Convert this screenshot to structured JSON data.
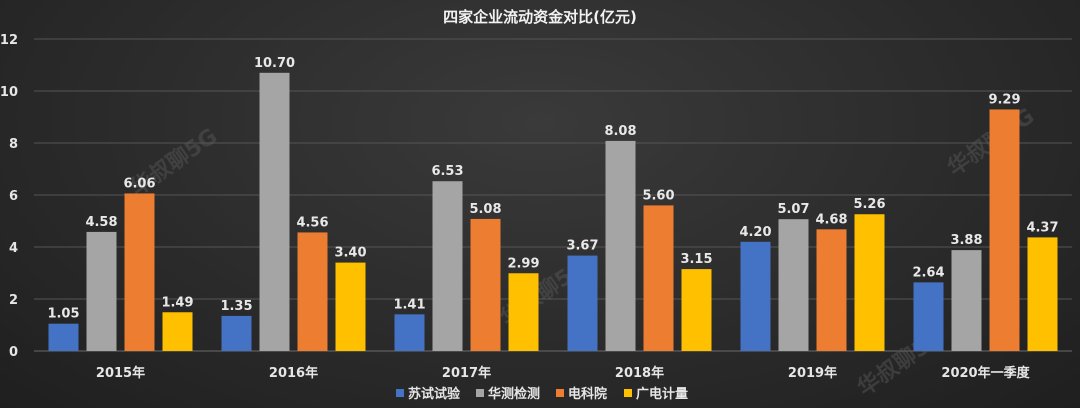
{
  "chart_data": {
    "type": "bar",
    "title": "四家企业流动资金对比(亿元)",
    "categories": [
      "2015年",
      "2016年",
      "2017年",
      "2018年",
      "2019年",
      "2020年一季度"
    ],
    "series": [
      {
        "name": "苏试试验",
        "color": "#4472C4",
        "values": [
          1.05,
          1.35,
          1.41,
          3.67,
          4.2,
          2.64
        ]
      },
      {
        "name": "华测检测",
        "color": "#A5A5A5",
        "values": [
          4.58,
          10.7,
          6.53,
          8.08,
          5.07,
          3.88
        ]
      },
      {
        "name": "电科院",
        "color": "#ED7D31",
        "values": [
          6.06,
          4.56,
          5.08,
          5.6,
          4.68,
          9.29
        ]
      },
      {
        "name": "广电计量",
        "color": "#FFC000",
        "values": [
          1.49,
          3.4,
          2.99,
          3.15,
          5.26,
          4.37
        ]
      }
    ],
    "ylim": [
      0,
      12
    ],
    "yticks": [
      0,
      2,
      4,
      6,
      8,
      10,
      12
    ],
    "xlabel": "",
    "ylabel": "",
    "legend_position": "bottom",
    "grid": true
  },
  "watermark": "华叔聊5G"
}
